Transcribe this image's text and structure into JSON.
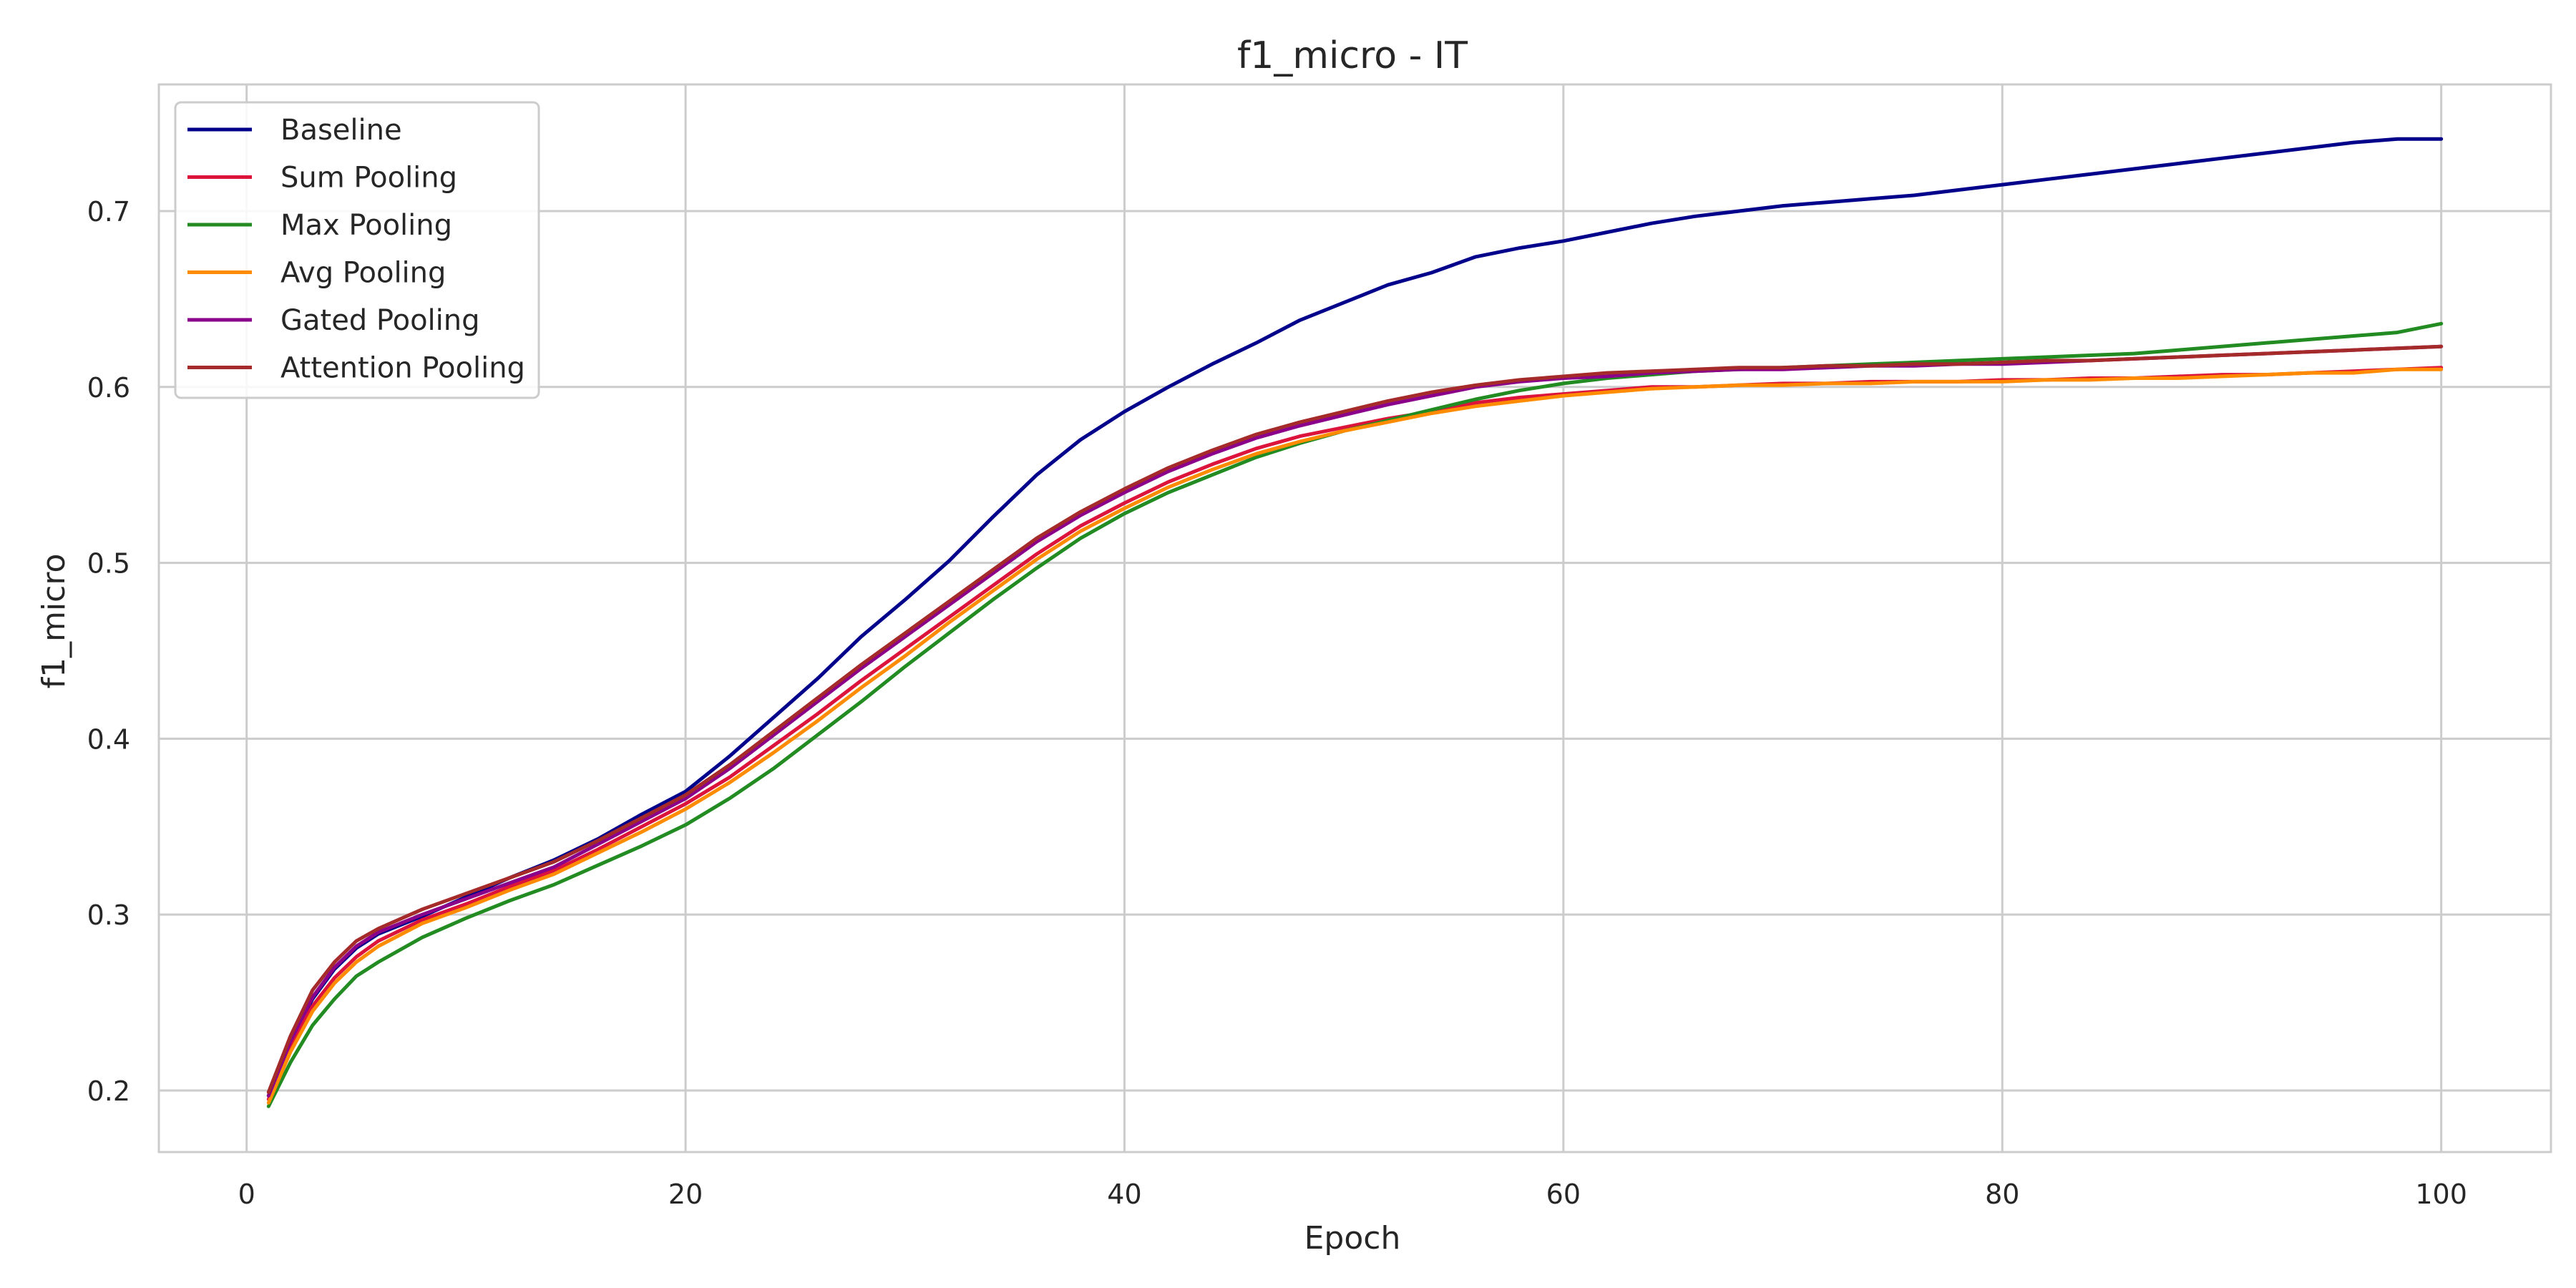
{
  "chart_data": {
    "type": "line",
    "title": "f1_micro - IT",
    "xlabel": "Epoch",
    "ylabel": "f1_micro",
    "xlim": [
      -4,
      105
    ],
    "ylim": [
      0.165,
      0.772
    ],
    "xticks": [
      0,
      20,
      40,
      60,
      80,
      100
    ],
    "yticks": [
      0.2,
      0.3,
      0.4,
      0.5,
      0.6,
      0.7
    ],
    "grid": true,
    "legend_position": "top-left",
    "series": [
      {
        "name": "Baseline",
        "color": "#00008b",
        "x": [
          1,
          2,
          3,
          4,
          5,
          6,
          8,
          10,
          12,
          14,
          16,
          18,
          20,
          22,
          24,
          26,
          28,
          30,
          32,
          34,
          36,
          38,
          40,
          42,
          44,
          46,
          48,
          50,
          52,
          54,
          56,
          58,
          60,
          62,
          64,
          66,
          68,
          70,
          72,
          74,
          76,
          78,
          80,
          82,
          84,
          86,
          88,
          90,
          92,
          94,
          96,
          98,
          100
        ],
        "y": [
          0.197,
          0.228,
          0.252,
          0.269,
          0.281,
          0.289,
          0.299,
          0.31,
          0.321,
          0.331,
          0.343,
          0.357,
          0.37,
          0.39,
          0.412,
          0.434,
          0.458,
          0.479,
          0.501,
          0.526,
          0.55,
          0.57,
          0.586,
          0.6,
          0.613,
          0.625,
          0.638,
          0.648,
          0.658,
          0.665,
          0.674,
          0.679,
          0.683,
          0.688,
          0.693,
          0.697,
          0.7,
          0.703,
          0.705,
          0.707,
          0.709,
          0.712,
          0.715,
          0.718,
          0.721,
          0.724,
          0.727,
          0.73,
          0.733,
          0.736,
          0.739,
          0.741,
          0.741
        ]
      },
      {
        "name": "Sum Pooling",
        "color": "#dc143c",
        "x": [
          1,
          2,
          3,
          4,
          5,
          6,
          8,
          10,
          12,
          14,
          16,
          18,
          20,
          22,
          24,
          26,
          28,
          30,
          32,
          34,
          36,
          38,
          40,
          42,
          44,
          46,
          48,
          50,
          52,
          54,
          56,
          58,
          60,
          62,
          64,
          66,
          68,
          70,
          72,
          74,
          76,
          78,
          80,
          82,
          84,
          86,
          88,
          90,
          92,
          94,
          96,
          98,
          100
        ],
        "y": [
          0.195,
          0.225,
          0.248,
          0.264,
          0.276,
          0.285,
          0.297,
          0.306,
          0.316,
          0.325,
          0.337,
          0.35,
          0.363,
          0.378,
          0.396,
          0.414,
          0.433,
          0.451,
          0.469,
          0.487,
          0.505,
          0.521,
          0.534,
          0.546,
          0.556,
          0.565,
          0.572,
          0.577,
          0.582,
          0.586,
          0.591,
          0.594,
          0.596,
          0.598,
          0.6,
          0.6,
          0.601,
          0.602,
          0.602,
          0.603,
          0.603,
          0.603,
          0.604,
          0.604,
          0.605,
          0.605,
          0.606,
          0.607,
          0.607,
          0.608,
          0.609,
          0.61,
          0.611
        ]
      },
      {
        "name": "Max Pooling",
        "color": "#228b22",
        "x": [
          1,
          2,
          3,
          4,
          5,
          6,
          8,
          10,
          12,
          14,
          16,
          18,
          20,
          22,
          24,
          26,
          28,
          30,
          32,
          34,
          36,
          38,
          40,
          42,
          44,
          46,
          48,
          50,
          52,
          54,
          56,
          58,
          60,
          62,
          64,
          66,
          68,
          70,
          72,
          74,
          76,
          78,
          80,
          82,
          84,
          86,
          88,
          90,
          92,
          94,
          96,
          98,
          100
        ],
        "y": [
          0.191,
          0.216,
          0.237,
          0.252,
          0.265,
          0.273,
          0.287,
          0.298,
          0.308,
          0.317,
          0.328,
          0.339,
          0.351,
          0.366,
          0.383,
          0.402,
          0.421,
          0.441,
          0.46,
          0.479,
          0.497,
          0.514,
          0.528,
          0.54,
          0.55,
          0.56,
          0.568,
          0.575,
          0.581,
          0.587,
          0.593,
          0.598,
          0.602,
          0.605,
          0.607,
          0.609,
          0.61,
          0.611,
          0.612,
          0.613,
          0.614,
          0.615,
          0.616,
          0.617,
          0.618,
          0.619,
          0.621,
          0.623,
          0.625,
          0.627,
          0.629,
          0.631,
          0.636
        ]
      },
      {
        "name": "Avg Pooling",
        "color": "#ff8c00",
        "x": [
          1,
          2,
          3,
          4,
          5,
          6,
          8,
          10,
          12,
          14,
          16,
          18,
          20,
          22,
          24,
          26,
          28,
          30,
          32,
          34,
          36,
          38,
          40,
          42,
          44,
          46,
          48,
          50,
          52,
          54,
          56,
          58,
          60,
          62,
          64,
          66,
          68,
          70,
          72,
          74,
          76,
          78,
          80,
          82,
          84,
          86,
          88,
          90,
          92,
          94,
          96,
          98,
          100
        ],
        "y": [
          0.193,
          0.222,
          0.245,
          0.261,
          0.273,
          0.282,
          0.295,
          0.304,
          0.314,
          0.323,
          0.335,
          0.347,
          0.36,
          0.375,
          0.392,
          0.41,
          0.429,
          0.447,
          0.466,
          0.484,
          0.502,
          0.518,
          0.531,
          0.543,
          0.553,
          0.562,
          0.569,
          0.575,
          0.58,
          0.585,
          0.589,
          0.592,
          0.595,
          0.597,
          0.599,
          0.6,
          0.601,
          0.601,
          0.602,
          0.602,
          0.603,
          0.603,
          0.603,
          0.604,
          0.604,
          0.605,
          0.605,
          0.606,
          0.607,
          0.608,
          0.608,
          0.61,
          0.61
        ]
      },
      {
        "name": "Gated Pooling",
        "color": "#8b008b",
        "x": [
          1,
          2,
          3,
          4,
          5,
          6,
          8,
          10,
          12,
          14,
          16,
          18,
          20,
          22,
          24,
          26,
          28,
          30,
          32,
          34,
          36,
          38,
          40,
          42,
          44,
          46,
          48,
          50,
          52,
          54,
          56,
          58,
          60,
          62,
          64,
          66,
          68,
          70,
          72,
          74,
          76,
          78,
          80,
          82,
          84,
          86,
          88,
          90,
          92,
          94,
          96,
          98,
          100
        ],
        "y": [
          0.197,
          0.228,
          0.253,
          0.27,
          0.282,
          0.29,
          0.3,
          0.309,
          0.318,
          0.327,
          0.34,
          0.353,
          0.366,
          0.383,
          0.402,
          0.421,
          0.44,
          0.458,
          0.476,
          0.494,
          0.512,
          0.527,
          0.54,
          0.552,
          0.562,
          0.571,
          0.578,
          0.584,
          0.59,
          0.595,
          0.6,
          0.603,
          0.605,
          0.606,
          0.608,
          0.609,
          0.61,
          0.61,
          0.611,
          0.612,
          0.612,
          0.613,
          0.613,
          0.614,
          0.615,
          0.616,
          0.617,
          0.618,
          0.619,
          0.62,
          0.621,
          0.622,
          0.623
        ]
      },
      {
        "name": "Attention Pooling",
        "color": "#a52a2a",
        "x": [
          1,
          2,
          3,
          4,
          5,
          6,
          8,
          10,
          12,
          14,
          16,
          18,
          20,
          22,
          24,
          26,
          28,
          30,
          32,
          34,
          36,
          38,
          40,
          42,
          44,
          46,
          48,
          50,
          52,
          54,
          56,
          58,
          60,
          62,
          64,
          66,
          68,
          70,
          72,
          74,
          76,
          78,
          80,
          82,
          84,
          86,
          88,
          90,
          92,
          94,
          96,
          98,
          100
        ],
        "y": [
          0.199,
          0.231,
          0.257,
          0.273,
          0.285,
          0.292,
          0.303,
          0.312,
          0.321,
          0.33,
          0.342,
          0.355,
          0.368,
          0.385,
          0.404,
          0.423,
          0.442,
          0.46,
          0.478,
          0.496,
          0.514,
          0.529,
          0.542,
          0.554,
          0.564,
          0.573,
          0.58,
          0.586,
          0.592,
          0.597,
          0.601,
          0.604,
          0.606,
          0.608,
          0.609,
          0.61,
          0.611,
          0.611,
          0.612,
          0.612,
          0.613,
          0.613,
          0.614,
          0.615,
          0.615,
          0.616,
          0.617,
          0.618,
          0.619,
          0.62,
          0.621,
          0.622,
          0.623
        ]
      }
    ]
  }
}
